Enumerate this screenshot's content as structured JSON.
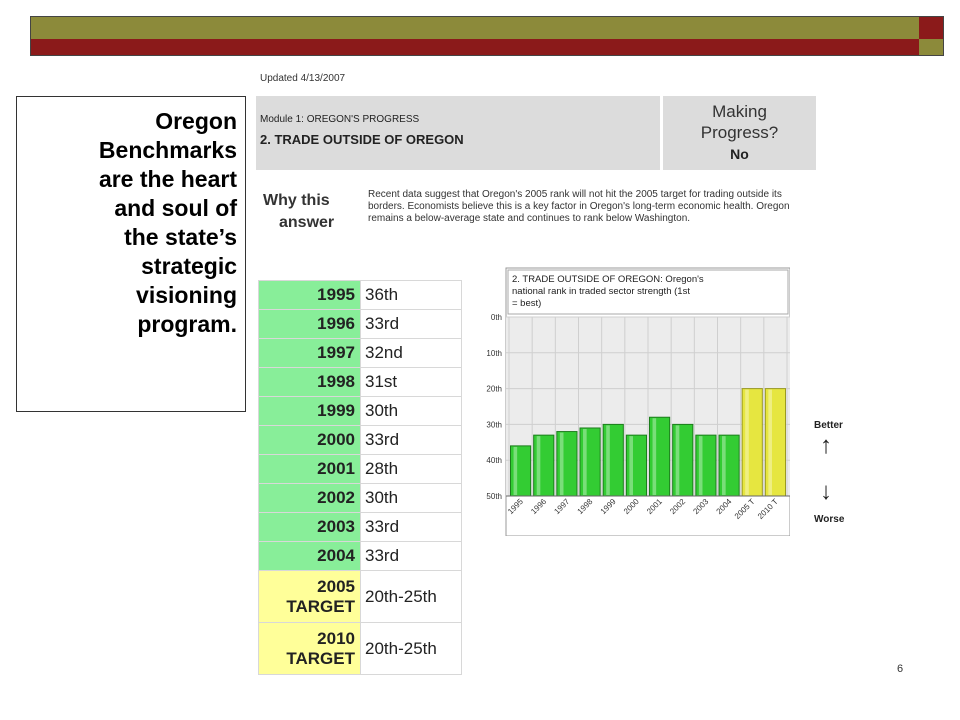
{
  "header": {
    "updated": "Updated 4/13/2007",
    "module": "Module 1: OREGON'S PROGRESS",
    "subtitle": "2. TRADE OUTSIDE OF OREGON",
    "progress_question_line1": "Making",
    "progress_question_line2": "Progress?",
    "progress_answer": "No"
  },
  "why": {
    "label_line1": "Why this",
    "label_line2": "answer",
    "text": "Recent data suggest that Oregon's 2005 rank will not hit the 2005 target for trading outside its borders. Economists believe this is a key factor in Oregon's long-term economic health. Oregon remains a below-average state and continues to rank below Washington."
  },
  "quote": {
    "lines": [
      "Oregon",
      "Benchmarks",
      "are the heart",
      "and soul of",
      "the state’s",
      "strategic",
      "visioning",
      "program."
    ]
  },
  "rank_table": {
    "rows": [
      {
        "year": "1995",
        "rank": "36th"
      },
      {
        "year": "1996",
        "rank": "33rd"
      },
      {
        "year": "1997",
        "rank": "32nd"
      },
      {
        "year": "1998",
        "rank": "31st"
      },
      {
        "year": "1999",
        "rank": "30th"
      },
      {
        "year": "2000",
        "rank": "33rd"
      },
      {
        "year": "2001",
        "rank": "28th"
      },
      {
        "year": "2002",
        "rank": "30th"
      },
      {
        "year": "2003",
        "rank": "33rd"
      },
      {
        "year": "2004",
        "rank": "33rd"
      }
    ],
    "targets": [
      {
        "year_line1": "2005",
        "year_line2": "TARGET",
        "rank": "20th-25th"
      },
      {
        "year_line1": "2010",
        "year_line2": "TARGET",
        "rank": "20th-25th"
      }
    ]
  },
  "chart_data": {
    "type": "bar",
    "title": "2. TRADE OUTSIDE OF OREGON: Oregon's national rank in traded sector strength (1st = best)",
    "categories": [
      "1995",
      "1996",
      "1997",
      "1998",
      "1999",
      "2000",
      "2001",
      "2002",
      "2003",
      "2004",
      "2005 T",
      "2010 T"
    ],
    "values": [
      36,
      33,
      32,
      31,
      30,
      33,
      28,
      30,
      33,
      33,
      20,
      20
    ],
    "ytick_labels": [
      "0th",
      "10th",
      "20th",
      "30th",
      "40th",
      "50th"
    ],
    "ylim": [
      0,
      50
    ],
    "y_inverted": true,
    "grid": true,
    "colors": {
      "actual": "#33cc33",
      "target": "#e6e640"
    },
    "legend_side": {
      "better": "Better",
      "worse": "Worse"
    }
  },
  "footer": {
    "page_number": "6"
  }
}
